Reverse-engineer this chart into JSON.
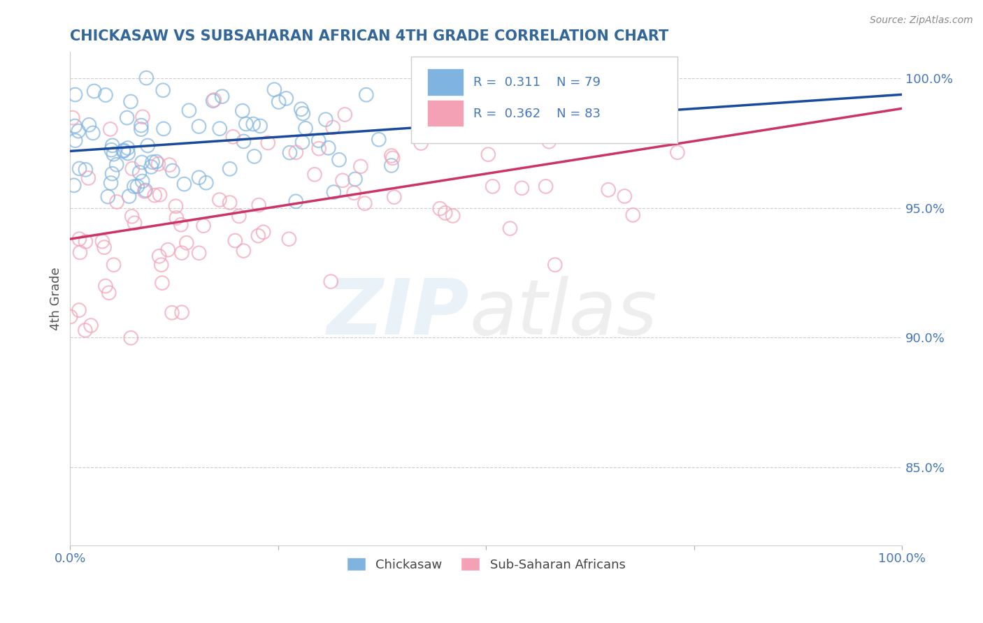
{
  "title": "CHICKASAW VS SUBSAHARAN AFRICAN 4TH GRADE CORRELATION CHART",
  "source_text": "Source: ZipAtlas.com",
  "ylabel": "4th Grade",
  "xlim": [
    0.0,
    1.0
  ],
  "ylim": [
    0.82,
    1.01
  ],
  "yticks": [
    0.85,
    0.9,
    0.95,
    1.0
  ],
  "ytick_labels": [
    "85.0%",
    "90.0%",
    "95.0%",
    "100.0%"
  ],
  "xticks": [
    0.0,
    0.25,
    0.5,
    0.75,
    1.0
  ],
  "xtick_labels": [
    "0.0%",
    "",
    "",
    "",
    "100.0%"
  ],
  "chickasaw_R": 0.311,
  "chickasaw_N": 79,
  "subsaharan_R": 0.362,
  "subsaharan_N": 83,
  "blue_color": "#7fb3e0",
  "pink_color": "#f4a0b5",
  "blue_line_color": "#1a4a9e",
  "pink_line_color": "#cc3366",
  "legend_label_blue": "Chickasaw",
  "legend_label_pink": "Sub-Saharan Africans",
  "title_color": "#336699",
  "axis_label_color": "#555555",
  "tick_color": "#4477bb",
  "grid_color": "#cccccc",
  "background_color": "#ffffff",
  "watermark_blue": "#c0d8f0",
  "watermark_gray": "#d0d0d0"
}
